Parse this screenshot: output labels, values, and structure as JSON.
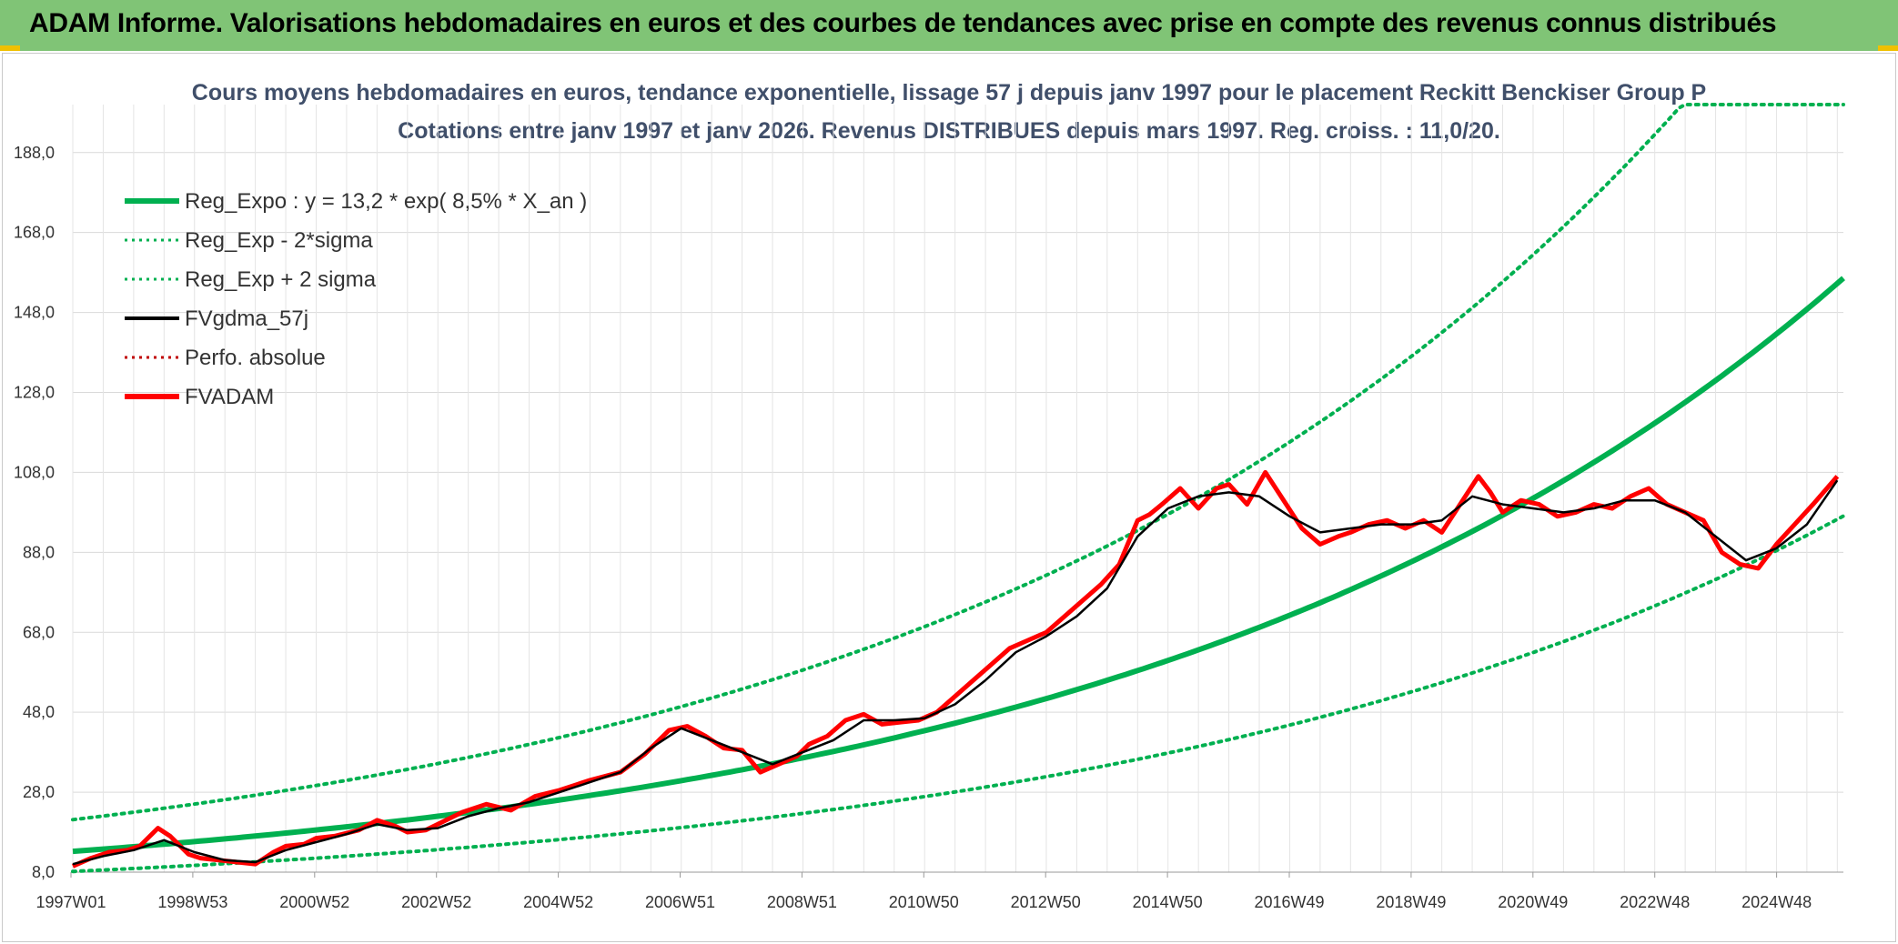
{
  "banner": {
    "title": "ADAM Informe. Valorisations hebdomadaires en euros et des courbes de tendances avec prise en compte des revenus connus distribués"
  },
  "colors": {
    "banner_bg": "#80c476",
    "trend": "#00b050",
    "adam": "#ff0000",
    "gdma": "#000000"
  },
  "chart_data": {
    "type": "line",
    "title": "Cours moyens hebdomadaires en euros, tendance exponentielle, lissage 57 j depuis janv 1997 pour le placement Reckitt Benckiser Group P",
    "subtitle": "Cotations entre janv 1997 et janv 2026. Revenus DISTRIBUES depuis mars 1997. Reg. croiss. : 11,0/20.",
    "xlabel": "",
    "ylabel": "",
    "x_ticks": [
      "1997W01",
      "1998W53",
      "2000W52",
      "2002W52",
      "2004W52",
      "2006W51",
      "2008W51",
      "2010W50",
      "2012W50",
      "2014W50",
      "2016W49",
      "2018W49",
      "2020W49",
      "2022W48",
      "2024W48"
    ],
    "y_ticks": [
      "8,0",
      "28,0",
      "48,0",
      "68,0",
      "88,0",
      "108,0",
      "128,0",
      "148,0",
      "168,0",
      "188,0"
    ],
    "xlim": [
      1997.0,
      2026.1
    ],
    "ylim": [
      8,
      200
    ],
    "grid": true,
    "legend_position": "top-left",
    "legend": [
      {
        "label": "Reg_Expo : y = 13,2 * exp( 8,5% *  X_an )",
        "color": "#00b050",
        "style": "solid-thick"
      },
      {
        "label": "Reg_Exp - 2*sigma",
        "color": "#00b050",
        "style": "dotted"
      },
      {
        "label": "Reg_Exp + 2 sigma",
        "color": "#00b050",
        "style": "dotted"
      },
      {
        "label": "FVgdma_57j",
        "color": "#000000",
        "style": "solid"
      },
      {
        "label": "Perfo. absolue",
        "color": "#c00000",
        "style": "dotted"
      },
      {
        "label": "FVADAM",
        "color": "#ff0000",
        "style": "solid-thick"
      }
    ],
    "trend": {
      "a": 13.2,
      "rate": 0.085,
      "start_year": 1997.0,
      "lower_factor": 0.62,
      "upper_factor": 1.6,
      "upper_cap": 200
    },
    "series": [
      {
        "name": "FVADAM",
        "x": [
          1997.0,
          1997.3,
          1997.6,
          1997.9,
          1998.1,
          1998.4,
          1998.6,
          1998.9,
          1999.1,
          1999.4,
          1999.7,
          2000.0,
          2000.3,
          2000.5,
          2000.8,
          2001.0,
          2001.3,
          2001.7,
          2002.0,
          2002.3,
          2002.5,
          2002.8,
          2003.0,
          2003.4,
          2003.8,
          2004.2,
          2004.6,
          2005.0,
          2005.5,
          2006.0,
          2006.4,
          2006.8,
          2007.1,
          2007.4,
          2007.7,
          2008.0,
          2008.3,
          2008.6,
          2008.9,
          2009.1,
          2009.4,
          2009.7,
          2010.0,
          2010.3,
          2010.6,
          2010.9,
          2011.2,
          2011.5,
          2011.8,
          2012.1,
          2012.4,
          2012.7,
          2013.0,
          2013.3,
          2013.6,
          2013.9,
          2014.2,
          2014.5,
          2014.7,
          2014.9,
          2015.2,
          2015.5,
          2015.8,
          2016.0,
          2016.3,
          2016.6,
          2016.9,
          2017.2,
          2017.5,
          2017.8,
          2018.0,
          2018.3,
          2018.6,
          2018.9,
          2019.2,
          2019.5,
          2019.8,
          2020.1,
          2020.3,
          2020.5,
          2020.8,
          2021.1,
          2021.4,
          2021.7,
          2022.0,
          2022.3,
          2022.6,
          2022.9,
          2023.2,
          2023.5,
          2023.8,
          2024.1,
          2024.4,
          2024.7,
          2025.0,
          2025.3,
          2025.6,
          2026.0
        ],
        "y": [
          9.5,
          11.5,
          13,
          13.5,
          14.5,
          19,
          17,
          12.5,
          11.5,
          11,
          10.5,
          10,
          13,
          14.5,
          15,
          16.5,
          17,
          18.5,
          21,
          19.5,
          18,
          18.5,
          20,
          23,
          25,
          23.5,
          27,
          28.5,
          31,
          33,
          37.5,
          43.5,
          44.5,
          42,
          39,
          38.5,
          33,
          35,
          37,
          40,
          42,
          46,
          47.5,
          45,
          45.5,
          46,
          48,
          52,
          56,
          60,
          64,
          66,
          68,
          72,
          76,
          80,
          85,
          96,
          97.5,
          100,
          104,
          99,
          104,
          105,
          100,
          108,
          101,
          94,
          90,
          92,
          93,
          95,
          96,
          94,
          96,
          93,
          100,
          107,
          103,
          98,
          101,
          100,
          97,
          98,
          100,
          99,
          102,
          104,
          100,
          98,
          96,
          88,
          85,
          84,
          90,
          95,
          100,
          107
        ]
      },
      {
        "name": "FVgdma_57j",
        "x": [
          1997.0,
          1997.5,
          1998.0,
          1998.5,
          1999.0,
          1999.5,
          2000.0,
          2000.5,
          2001.0,
          2001.5,
          2002.0,
          2002.5,
          2003.0,
          2003.5,
          2004.0,
          2004.5,
          2005.0,
          2005.5,
          2006.0,
          2006.5,
          2007.0,
          2007.5,
          2008.0,
          2008.5,
          2009.0,
          2009.5,
          2010.0,
          2010.5,
          2011.0,
          2011.5,
          2012.0,
          2012.5,
          2013.0,
          2013.5,
          2014.0,
          2014.5,
          2015.0,
          2015.5,
          2016.0,
          2016.5,
          2017.0,
          2017.5,
          2018.0,
          2018.5,
          2019.0,
          2019.5,
          2020.0,
          2020.5,
          2021.0,
          2021.5,
          2022.0,
          2022.5,
          2023.0,
          2023.5,
          2024.0,
          2024.5,
          2025.0,
          2025.5,
          2026.0
        ],
        "y": [
          10,
          12,
          13.5,
          16,
          13,
          11,
          10.5,
          13.5,
          15.5,
          17.5,
          20,
          18.5,
          19,
          22,
          24,
          25.5,
          28,
          30.5,
          33,
          39,
          44,
          41,
          38,
          35,
          38,
          41,
          46,
          46,
          46.5,
          50,
          56,
          63,
          67,
          72,
          79,
          92,
          99,
          102,
          103,
          102,
          97,
          93,
          94,
          95,
          95,
          96,
          102,
          100,
          99,
          98,
          99,
          101,
          101,
          98,
          92,
          86,
          89,
          95,
          106
        ]
      }
    ]
  }
}
